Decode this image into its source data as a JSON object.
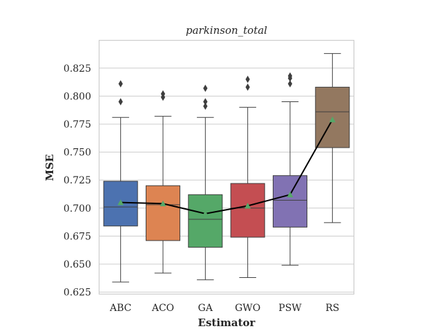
{
  "chart_data": {
    "type": "box",
    "title": "parkinson_total",
    "xlabel": "Estimator",
    "ylabel": "MSE",
    "ylim": [
      0.6235,
      0.8495
    ],
    "y_ticks": [
      0.625,
      0.65,
      0.675,
      0.7,
      0.725,
      0.75,
      0.775,
      0.8,
      0.825
    ],
    "y_tick_labels": [
      "0.625",
      "0.650",
      "0.675",
      "0.700",
      "0.725",
      "0.750",
      "0.775",
      "0.800",
      "0.825"
    ],
    "grid": "horizontal",
    "categories": [
      "ABC",
      "ACO",
      "GA",
      "GWO",
      "PSW",
      "RS"
    ],
    "boxes": [
      {
        "label": "ABC",
        "color": "#4c72b0",
        "whislo": 0.634,
        "q1": 0.684,
        "med": 0.701,
        "q3": 0.724,
        "whishi": 0.781,
        "mean": 0.705,
        "fliers": [
          0.811,
          0.795
        ]
      },
      {
        "label": "ACO",
        "color": "#dd8452",
        "whislo": 0.642,
        "q1": 0.671,
        "med": 0.703,
        "q3": 0.72,
        "whishi": 0.782,
        "mean": 0.704,
        "fliers": [
          0.802,
          0.799
        ]
      },
      {
        "label": "GA",
        "color": "#55a868",
        "whislo": 0.636,
        "q1": 0.665,
        "med": 0.69,
        "q3": 0.712,
        "whishi": 0.781,
        "mean": 0.695,
        "fliers": [
          0.807,
          0.795,
          0.791
        ]
      },
      {
        "label": "GWO",
        "color": "#c44e52",
        "whislo": 0.638,
        "q1": 0.674,
        "med": 0.7,
        "q3": 0.722,
        "whishi": 0.79,
        "mean": 0.702,
        "fliers": [
          0.815,
          0.808
        ]
      },
      {
        "label": "PSW",
        "color": "#8172b3",
        "whislo": 0.649,
        "q1": 0.683,
        "med": 0.707,
        "q3": 0.729,
        "whishi": 0.795,
        "mean": 0.712,
        "fliers": [
          0.818,
          0.816,
          0.811
        ]
      },
      {
        "label": "RS",
        "color": "#937860",
        "whislo": 0.687,
        "q1": 0.754,
        "med": 0.786,
        "q3": 0.808,
        "whishi": 0.838,
        "mean": 0.779,
        "fliers": []
      }
    ],
    "mean_line": {
      "color": "#000000",
      "values": [
        0.705,
        0.704,
        0.695,
        0.702,
        0.712,
        0.779
      ]
    },
    "mean_marker_color": "#55a868"
  }
}
